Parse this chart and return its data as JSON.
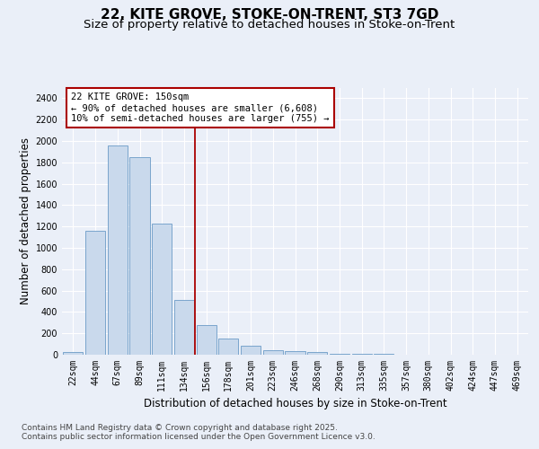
{
  "title1": "22, KITE GROVE, STOKE-ON-TRENT, ST3 7GD",
  "title2": "Size of property relative to detached houses in Stoke-on-Trent",
  "xlabel": "Distribution of detached houses by size in Stoke-on-Trent",
  "ylabel": "Number of detached properties",
  "categories": [
    "22sqm",
    "44sqm",
    "67sqm",
    "89sqm",
    "111sqm",
    "134sqm",
    "156sqm",
    "178sqm",
    "201sqm",
    "223sqm",
    "246sqm",
    "268sqm",
    "290sqm",
    "313sqm",
    "335sqm",
    "357sqm",
    "380sqm",
    "402sqm",
    "424sqm",
    "447sqm",
    "469sqm"
  ],
  "values": [
    25,
    1160,
    1960,
    1850,
    1230,
    515,
    275,
    155,
    85,
    45,
    30,
    28,
    10,
    8,
    5,
    4,
    3,
    2,
    1,
    1,
    1
  ],
  "bar_color": "#c9d9ec",
  "bar_edge_color": "#6b9bc7",
  "vline_color": "#aa0000",
  "annotation_text": "22 KITE GROVE: 150sqm\n← 90% of detached houses are smaller (6,608)\n10% of semi-detached houses are larger (755) →",
  "annotation_box_color": "#ffffff",
  "annotation_box_edge": "#aa0000",
  "ylim": [
    0,
    2500
  ],
  "yticks": [
    0,
    200,
    400,
    600,
    800,
    1000,
    1200,
    1400,
    1600,
    1800,
    2000,
    2200,
    2400
  ],
  "background_color": "#eaeff8",
  "axes_background": "#eaeff8",
  "grid_color": "#ffffff",
  "footer1": "Contains HM Land Registry data © Crown copyright and database right 2025.",
  "footer2": "Contains public sector information licensed under the Open Government Licence v3.0.",
  "title_fontsize": 11,
  "subtitle_fontsize": 9.5,
  "axis_label_fontsize": 8.5,
  "tick_fontsize": 7,
  "annotation_fontsize": 7.5,
  "footer_fontsize": 6.5
}
